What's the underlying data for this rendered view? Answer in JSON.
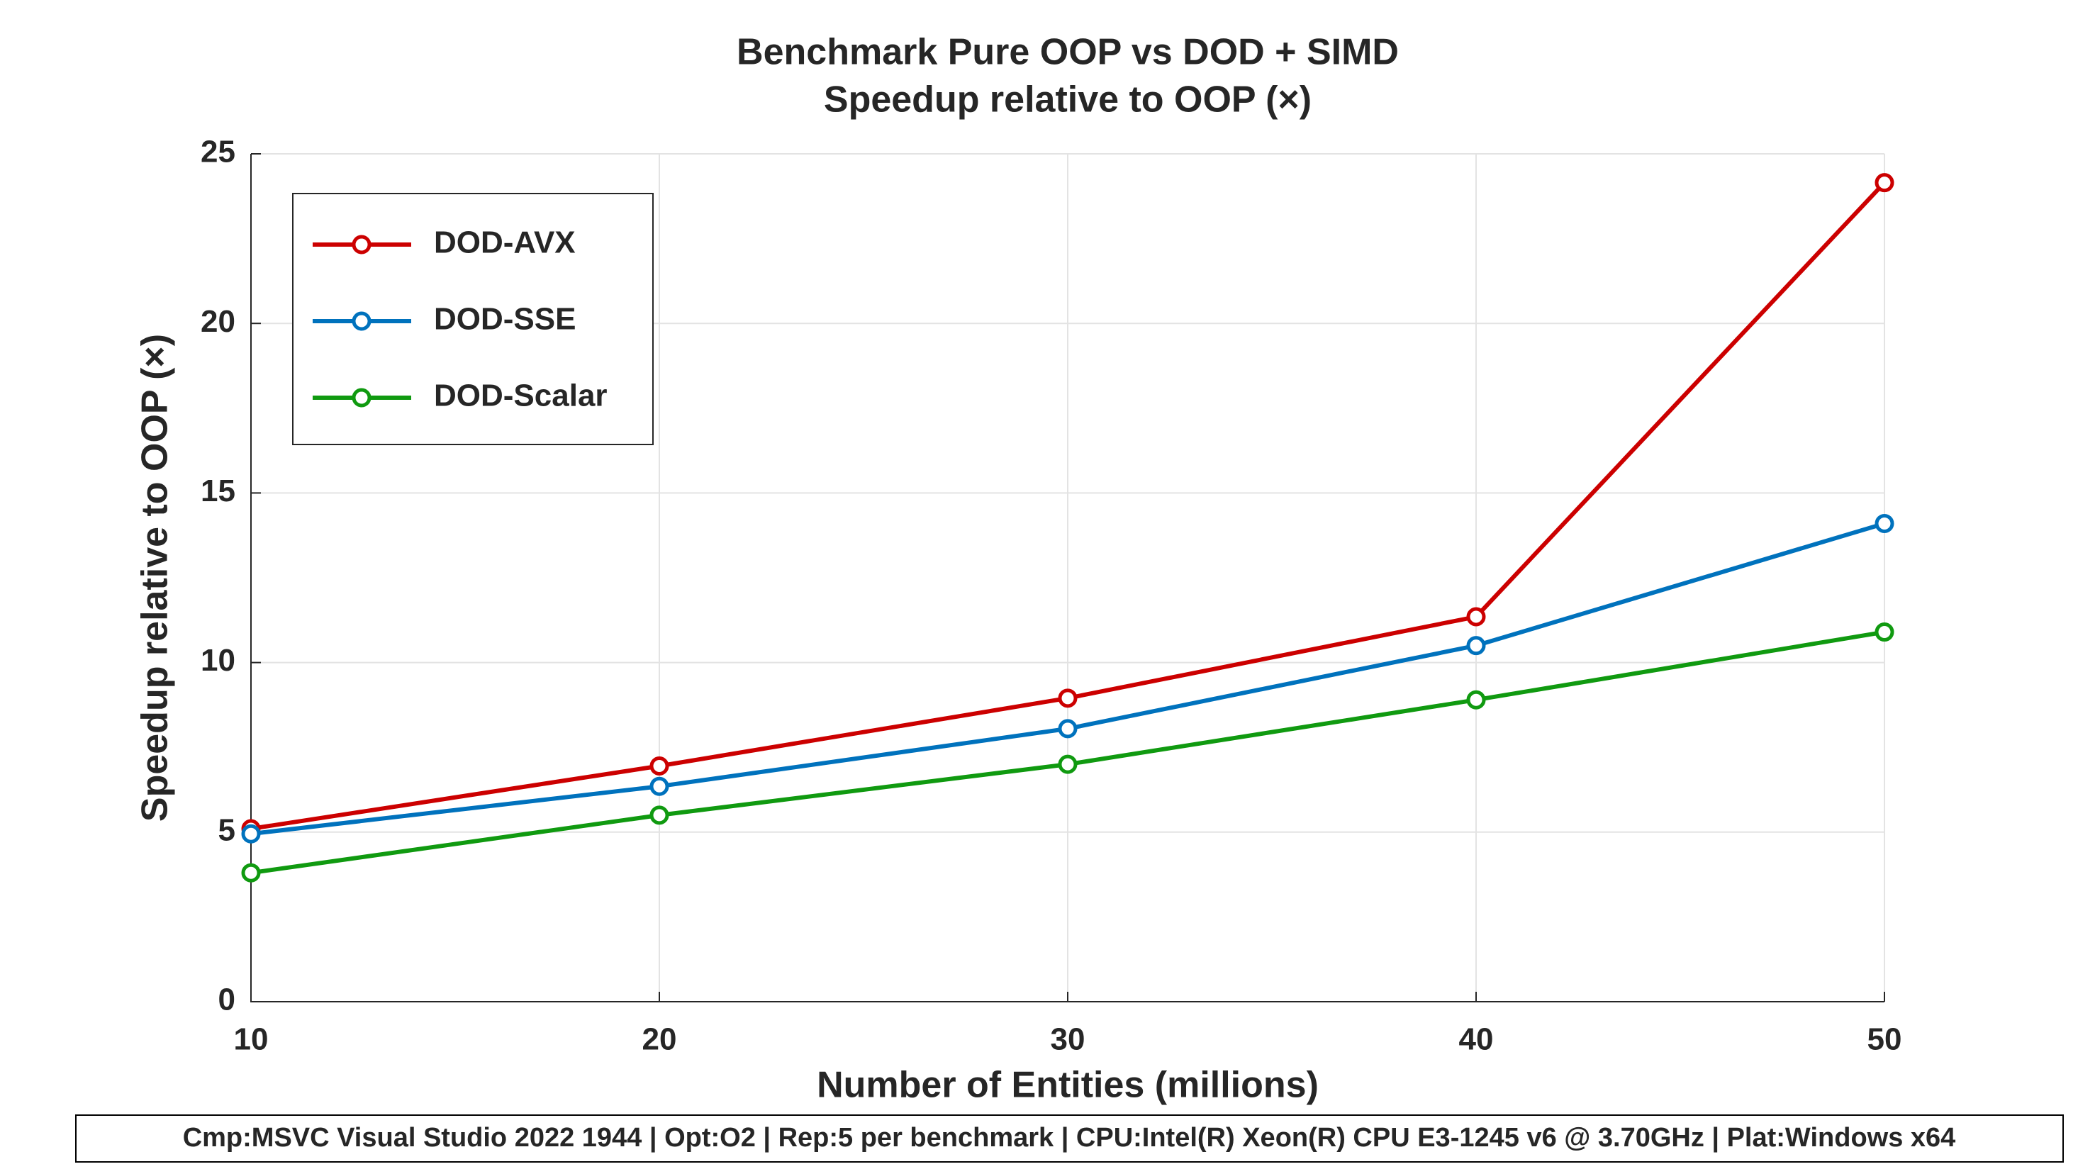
{
  "chart_data": {
    "type": "line",
    "title": "Benchmark Pure OOP vs DOD + SIMD",
    "subtitle": "Speedup relative to OOP (×)",
    "x_label": "Number of Entities (millions)",
    "y_label": "Speedup relative to OOP (×)",
    "footer": "Cmp:MSVC Visual Studio 2022 1944 | Opt:O2 | Rep:5 per benchmark | CPU:Intel(R) Xeon(R) CPU E3-1245 v6 @ 3.70GHz | Plat:Windows x64",
    "x": [
      10,
      20,
      30,
      40,
      50
    ],
    "series": [
      {
        "name": "DOD-AVX",
        "color": "#cc0000",
        "values": [
          5.1,
          6.95,
          8.95,
          11.35,
          24.15
        ]
      },
      {
        "name": "DOD-SSE",
        "color": "#0072bd",
        "values": [
          4.95,
          6.35,
          8.05,
          10.5,
          14.1
        ]
      },
      {
        "name": "DOD-Scalar",
        "color": "#109a10",
        "values": [
          3.8,
          5.5,
          7.0,
          8.9,
          10.9
        ]
      }
    ],
    "xlim": [
      10,
      50
    ],
    "xticks": [
      10,
      20,
      30,
      40,
      50
    ],
    "ylim": [
      0,
      25
    ],
    "yticks": [
      0,
      5,
      10,
      15,
      20,
      25
    ],
    "grid": true,
    "legend": "upper-left"
  }
}
